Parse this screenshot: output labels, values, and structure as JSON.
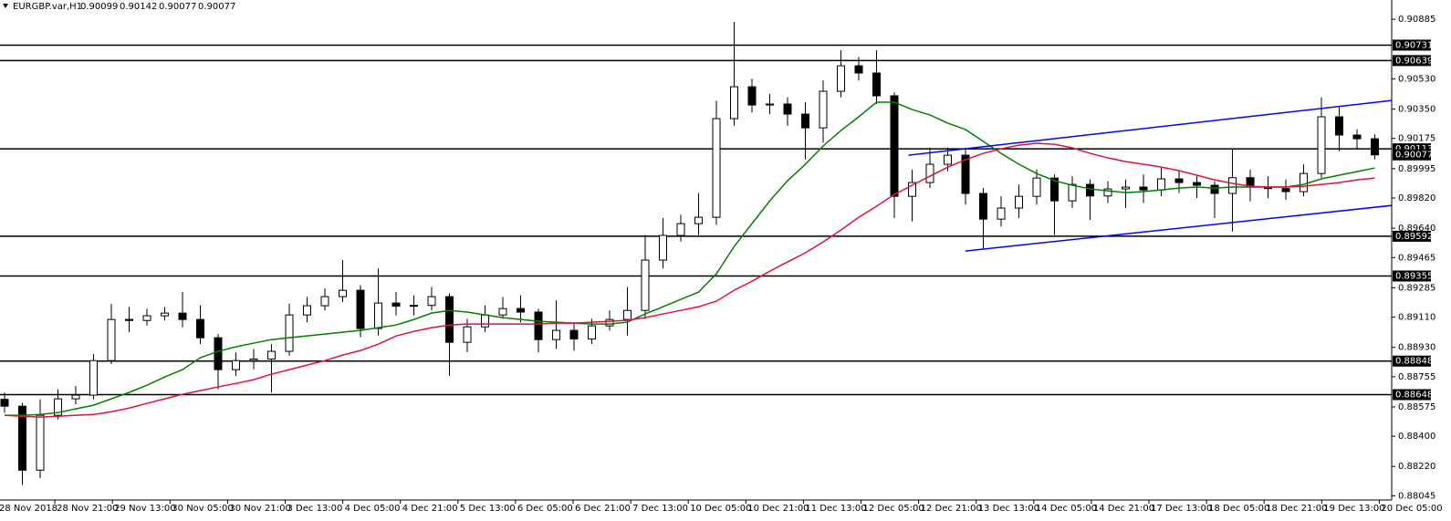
{
  "chart_data": {
    "type": "candlestick",
    "header": {
      "symbol": "EURGBP.var,H1",
      "values": [
        0.90099,
        0.90142,
        0.90077,
        0.90077
      ]
    },
    "ylim": [
      0.8802,
      0.91
    ],
    "yticks": [
      0.90885,
      {
        "value": 0.9053,
        "label": "0.90530"
      },
      {
        "value": 0.9035,
        "label": "0.90350"
      },
      0.90175,
      0.89995,
      {
        "value": 0.8982,
        "label": "0.89820"
      },
      {
        "value": 0.8964,
        "label": "0.89640"
      },
      0.89465,
      0.89285,
      {
        "value": 0.8911,
        "label": "0.89110"
      },
      {
        "value": 0.8893,
        "label": "0.88930"
      },
      0.88755,
      0.88575,
      {
        "value": 0.884,
        "label": "0.88400"
      },
      {
        "value": 0.8822,
        "label": "0.88220"
      },
      0.88045
    ],
    "xlabels": [
      "28 Nov 2018",
      "28 Nov 21:00",
      "29 Nov 13:00",
      "30 Nov 05:00",
      "30 Nov 21:00",
      "3 Dec 13:00",
      "4 Dec 05:00",
      "4 Dec 21:00",
      "5 Dec 13:00",
      "6 Dec 05:00",
      "6 Dec 21:00",
      "7 Dec 13:00",
      "10 Dec 05:00",
      "10 Dec 21:00",
      "11 Dec 13:00",
      "12 Dec 05:00",
      "12 Dec 21:00",
      "13 Dec 13:00",
      "14 Dec 05:00",
      "14 Dec 21:00",
      "17 Dec 13:00",
      "18 Dec 05:00",
      "18 Dec 21:00",
      "19 Dec 13:00",
      "20 Dec 05:00"
    ],
    "levels": [
      0.90731,
      0.90639,
      0.90113,
      0.89592,
      0.89355,
      0.88848,
      0.88648
    ],
    "last_price": 0.90077,
    "open": [
      0.8862,
      0.88579,
      0.88198,
      0.88525,
      0.88623,
      0.88645,
      0.88851,
      0.89096,
      0.8909,
      0.89118,
      0.89134,
      0.89096,
      0.88987,
      0.88797,
      0.88851,
      0.8886,
      0.88906,
      0.89123,
      0.89178,
      0.89232,
      0.8927,
      0.89042,
      0.89194,
      0.89175,
      0.8918,
      0.89232,
      0.8896,
      0.89052,
      0.89123,
      0.89161,
      0.8914,
      0.88976,
      0.89031,
      0.8898,
      0.89058,
      0.89096,
      0.8915,
      0.8945,
      0.89597,
      0.89667,
      0.89705,
      0.90293,
      0.90483,
      0.90374,
      0.9038,
      0.9032,
      0.90238,
      0.90456,
      0.90608,
      0.90565,
      0.90429,
      0.8983,
      0.89912,
      0.90021,
      0.90075,
      0.89847,
      0.89694,
      0.8976,
      0.8983,
      0.89939,
      0.89803,
      0.89901,
      0.89832,
      0.89874,
      0.89885,
      0.89868,
      0.89934,
      0.89912,
      0.89896,
      0.89847,
      0.89941,
      0.89885,
      0.89876,
      0.89858,
      0.89966,
      0.90304,
      0.90195,
      0.90173
    ],
    "high": [
      0.8866,
      0.886,
      0.8862,
      0.8868,
      0.887,
      0.8889,
      0.8919,
      0.8917,
      0.8916,
      0.8917,
      0.8926,
      0.8918,
      0.8901,
      0.889,
      0.8892,
      0.8895,
      0.8919,
      0.8923,
      0.8928,
      0.8945,
      0.893,
      0.894,
      0.8926,
      0.8924,
      0.8929,
      0.8925,
      0.891,
      0.8918,
      0.8923,
      0.8924,
      0.8916,
      0.8921,
      0.8908,
      0.891,
      0.8915,
      0.8929,
      0.896,
      0.897,
      0.8972,
      0.8985,
      0.904,
      0.9087,
      0.9053,
      0.9044,
      0.9042,
      0.9039,
      0.9052,
      0.907,
      0.9066,
      0.907,
      0.9045,
      0.8999,
      0.9012,
      0.9012,
      0.9012,
      0.8988,
      0.8983,
      0.899,
      0.8999,
      0.8996,
      0.8995,
      0.8993,
      0.8992,
      0.8993,
      0.8996,
      0.9,
      0.8998,
      0.8995,
      0.8992,
      0.9011,
      0.8999,
      0.8995,
      0.8993,
      0.9002,
      0.9042,
      0.9036,
      0.9023,
      0.902
    ],
    "low": [
      0.8854,
      0.8811,
      0.8815,
      0.885,
      0.8859,
      0.8862,
      0.8883,
      0.8902,
      0.8906,
      0.8909,
      0.8905,
      0.8895,
      0.8868,
      0.8876,
      0.888,
      0.8866,
      0.8888,
      0.8908,
      0.8915,
      0.892,
      0.8899,
      0.89,
      0.8912,
      0.8912,
      0.8915,
      0.8876,
      0.889,
      0.8902,
      0.891,
      0.8908,
      0.889,
      0.8892,
      0.8891,
      0.8895,
      0.8903,
      0.89,
      0.891,
      0.894,
      0.8956,
      0.896,
      0.8966,
      0.9025,
      0.9033,
      0.9032,
      0.9025,
      0.9005,
      0.9015,
      0.9042,
      0.9052,
      0.9038,
      0.897,
      0.8968,
      0.8988,
      0.8998,
      0.8978,
      0.8952,
      0.8965,
      0.897,
      0.8978,
      0.896,
      0.8976,
      0.8969,
      0.8979,
      0.8976,
      0.8979,
      0.8983,
      0.8985,
      0.8982,
      0.897,
      0.8962,
      0.898,
      0.8982,
      0.8981,
      0.8983,
      0.8994,
      0.901,
      0.9011,
      0.9005
    ],
    "close": [
      0.88579,
      0.88198,
      0.88525,
      0.88623,
      0.88645,
      0.88851,
      0.89096,
      0.8909,
      0.89118,
      0.89134,
      0.89096,
      0.88987,
      0.88797,
      0.88851,
      0.8886,
      0.88906,
      0.89123,
      0.89178,
      0.89232,
      0.8927,
      0.89042,
      0.89194,
      0.89175,
      0.8918,
      0.89232,
      0.8896,
      0.89052,
      0.89123,
      0.89161,
      0.8914,
      0.88976,
      0.89031,
      0.8898,
      0.89058,
      0.89096,
      0.8915,
      0.8945,
      0.89597,
      0.89667,
      0.89705,
      0.90293,
      0.90483,
      0.90374,
      0.9038,
      0.9032,
      0.90238,
      0.90456,
      0.90608,
      0.90565,
      0.90429,
      0.8983,
      0.89912,
      0.90021,
      0.90075,
      0.89847,
      0.89694,
      0.8976,
      0.8983,
      0.89939,
      0.89803,
      0.89901,
      0.89832,
      0.89874,
      0.89885,
      0.89868,
      0.89934,
      0.89912,
      0.89896,
      0.89847,
      0.89941,
      0.89885,
      0.89876,
      0.89858,
      0.89966,
      0.90304,
      0.90195,
      0.90173,
      0.90077
    ],
    "ma": [
      {
        "color": "#008000",
        "values": [
          0.88525,
          0.88525,
          0.8853,
          0.88541,
          0.88563,
          0.88585,
          0.88623,
          0.88661,
          0.88704,
          0.88753,
          0.88797,
          0.88868,
          0.88906,
          0.88933,
          0.88955,
          0.88976,
          0.88987,
          0.88998,
          0.89009,
          0.8902,
          0.89031,
          0.89047,
          0.89063,
          0.89096,
          0.89134,
          0.8915,
          0.8914,
          0.89123,
          0.89107,
          0.89096,
          0.89085,
          0.8908,
          0.89074,
          0.89069,
          0.89069,
          0.8908,
          0.89129,
          0.89172,
          0.89216,
          0.89259,
          0.89368,
          0.89531,
          0.89667,
          0.89803,
          0.89923,
          0.90021,
          0.9013,
          0.90222,
          0.90304,
          0.90391,
          0.90391,
          0.90347,
          0.90315,
          0.90266,
          0.90228,
          0.90157,
          0.90086,
          0.90021,
          0.89966,
          0.89923,
          0.89896,
          0.89874,
          0.89863,
          0.89852,
          0.89858,
          0.89868,
          0.89879,
          0.89885,
          0.89879,
          0.89885,
          0.89885,
          0.89885,
          0.89885,
          0.89901,
          0.89934,
          0.89956,
          0.89977,
          0.89999
        ]
      },
      {
        "color": "#dc143c",
        "values": [
          0.88525,
          0.88519,
          0.88514,
          0.88519,
          0.88525,
          0.8853,
          0.88546,
          0.88568,
          0.88596,
          0.88623,
          0.8865,
          0.88672,
          0.88694,
          0.88715,
          0.88737,
          0.8877,
          0.88797,
          0.88824,
          0.88851,
          0.88884,
          0.88911,
          0.88949,
          0.88998,
          0.89025,
          0.89047,
          0.89063,
          0.89069,
          0.89069,
          0.89069,
          0.89069,
          0.89069,
          0.89074,
          0.89074,
          0.8908,
          0.89085,
          0.89091,
          0.89107,
          0.89129,
          0.8915,
          0.89172,
          0.89205,
          0.8927,
          0.89324,
          0.89384,
          0.89439,
          0.89493,
          0.89558,
          0.89629,
          0.89705,
          0.89771,
          0.89841,
          0.89896,
          0.8995,
          0.90004,
          0.90048,
          0.90086,
          0.90113,
          0.90135,
          0.90146,
          0.9014,
          0.90119,
          0.90086,
          0.90059,
          0.90037,
          0.90021,
          0.90004,
          0.89983,
          0.89956,
          0.89928,
          0.89907,
          0.8989,
          0.89885,
          0.89885,
          0.8989,
          0.89901,
          0.89912,
          0.89928,
          0.89939
        ]
      }
    ],
    "channel": {
      "color": "#0000ff",
      "lines": [
        {
          "x": [
            50.8,
            78
          ],
          "y": [
            0.90075,
            0.90402
          ]
        },
        {
          "x": [
            54,
            78
          ],
          "y": [
            0.89504,
            0.89776
          ]
        }
      ]
    }
  }
}
